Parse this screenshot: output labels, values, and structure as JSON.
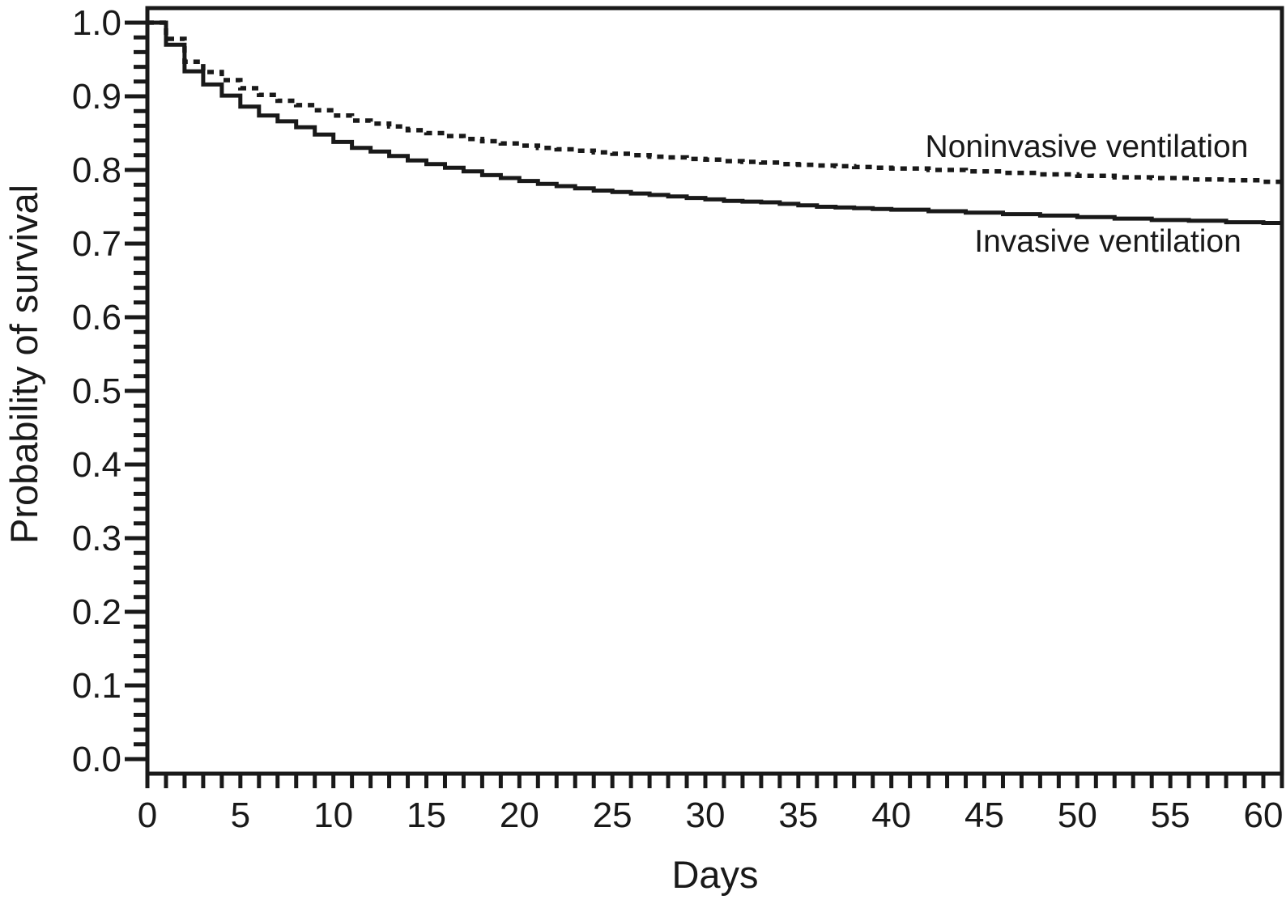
{
  "chart_data": {
    "type": "line",
    "subtype": "kaplan-meier-step",
    "title": "",
    "xlabel": "Days",
    "ylabel": "Probability of survival",
    "xlim": [
      0,
      61
    ],
    "ylim": [
      -0.02,
      1.02
    ],
    "grid": false,
    "legend_position": "inline-annotations",
    "line_color": "#191919",
    "x_major_ticks": [
      0,
      5,
      10,
      15,
      20,
      25,
      30,
      35,
      40,
      45,
      50,
      55,
      60
    ],
    "x_tick_labels": [
      "0",
      "5",
      "10",
      "15",
      "20",
      "25",
      "30",
      "35",
      "40",
      "45",
      "50",
      "55",
      "60"
    ],
    "x_minor_tick_step": 1,
    "y_major_ticks": [
      0.0,
      0.1,
      0.2,
      0.3,
      0.4,
      0.5,
      0.6,
      0.7,
      0.8,
      0.9,
      1.0
    ],
    "y_tick_labels": [
      "0.0",
      "0.1",
      "0.2",
      "0.3",
      "0.4",
      "0.5",
      "0.6",
      "0.7",
      "0.8",
      "0.9",
      "1.0"
    ],
    "y_minor_tick_step": 0.02,
    "series": [
      {
        "name": "Noninvasive ventilation",
        "line_style": "dashed",
        "label_anchor_day": 50.5,
        "label_anchor_value": 0.833,
        "points": [
          [
            0,
            1.0
          ],
          [
            1,
            0.978
          ],
          [
            2,
            0.947
          ],
          [
            3,
            0.933
          ],
          [
            4,
            0.922
          ],
          [
            5,
            0.911
          ],
          [
            6,
            0.902
          ],
          [
            7,
            0.894
          ],
          [
            8,
            0.888
          ],
          [
            9,
            0.881
          ],
          [
            10,
            0.874
          ],
          [
            11,
            0.867
          ],
          [
            12,
            0.863
          ],
          [
            13,
            0.859
          ],
          [
            14,
            0.854
          ],
          [
            15,
            0.85
          ],
          [
            16,
            0.846
          ],
          [
            17,
            0.842
          ],
          [
            18,
            0.839
          ],
          [
            19,
            0.836
          ],
          [
            20,
            0.833
          ],
          [
            21,
            0.83
          ],
          [
            22,
            0.828
          ],
          [
            23,
            0.826
          ],
          [
            24,
            0.824
          ],
          [
            25,
            0.822
          ],
          [
            26,
            0.82
          ],
          [
            27,
            0.818
          ],
          [
            28,
            0.817
          ],
          [
            29,
            0.815
          ],
          [
            30,
            0.814
          ],
          [
            31,
            0.812
          ],
          [
            32,
            0.811
          ],
          [
            33,
            0.81
          ],
          [
            34,
            0.808
          ],
          [
            35,
            0.807
          ],
          [
            36,
            0.806
          ],
          [
            37,
            0.805
          ],
          [
            38,
            0.804
          ],
          [
            39,
            0.803
          ],
          [
            40,
            0.802
          ],
          [
            42,
            0.8
          ],
          [
            44,
            0.798
          ],
          [
            46,
            0.796
          ],
          [
            48,
            0.794
          ],
          [
            50,
            0.792
          ],
          [
            52,
            0.79
          ],
          [
            54,
            0.789
          ],
          [
            56,
            0.787
          ],
          [
            58,
            0.786
          ],
          [
            60,
            0.784
          ]
        ]
      },
      {
        "name": "Invasive ventilation",
        "line_style": "solid",
        "label_anchor_day": 51.6,
        "label_anchor_value": 0.7,
        "points": [
          [
            0,
            1.0
          ],
          [
            1,
            0.97
          ],
          [
            2,
            0.934
          ],
          [
            3,
            0.916
          ],
          [
            4,
            0.901
          ],
          [
            5,
            0.886
          ],
          [
            6,
            0.874
          ],
          [
            7,
            0.866
          ],
          [
            8,
            0.858
          ],
          [
            9,
            0.848
          ],
          [
            10,
            0.838
          ],
          [
            11,
            0.83
          ],
          [
            12,
            0.825
          ],
          [
            13,
            0.819
          ],
          [
            14,
            0.813
          ],
          [
            15,
            0.808
          ],
          [
            16,
            0.803
          ],
          [
            17,
            0.798
          ],
          [
            18,
            0.793
          ],
          [
            19,
            0.789
          ],
          [
            20,
            0.785
          ],
          [
            21,
            0.781
          ],
          [
            22,
            0.778
          ],
          [
            23,
            0.775
          ],
          [
            24,
            0.772
          ],
          [
            25,
            0.77
          ],
          [
            26,
            0.768
          ],
          [
            27,
            0.766
          ],
          [
            28,
            0.764
          ],
          [
            29,
            0.762
          ],
          [
            30,
            0.76
          ],
          [
            31,
            0.758
          ],
          [
            32,
            0.757
          ],
          [
            33,
            0.756
          ],
          [
            34,
            0.754
          ],
          [
            35,
            0.752
          ],
          [
            36,
            0.75
          ],
          [
            37,
            0.749
          ],
          [
            38,
            0.748
          ],
          [
            39,
            0.747
          ],
          [
            40,
            0.746
          ],
          [
            42,
            0.744
          ],
          [
            44,
            0.742
          ],
          [
            46,
            0.74
          ],
          [
            48,
            0.738
          ],
          [
            50,
            0.736
          ],
          [
            52,
            0.734
          ],
          [
            54,
            0.732
          ],
          [
            56,
            0.731
          ],
          [
            58,
            0.729
          ],
          [
            60,
            0.728
          ]
        ]
      }
    ]
  }
}
